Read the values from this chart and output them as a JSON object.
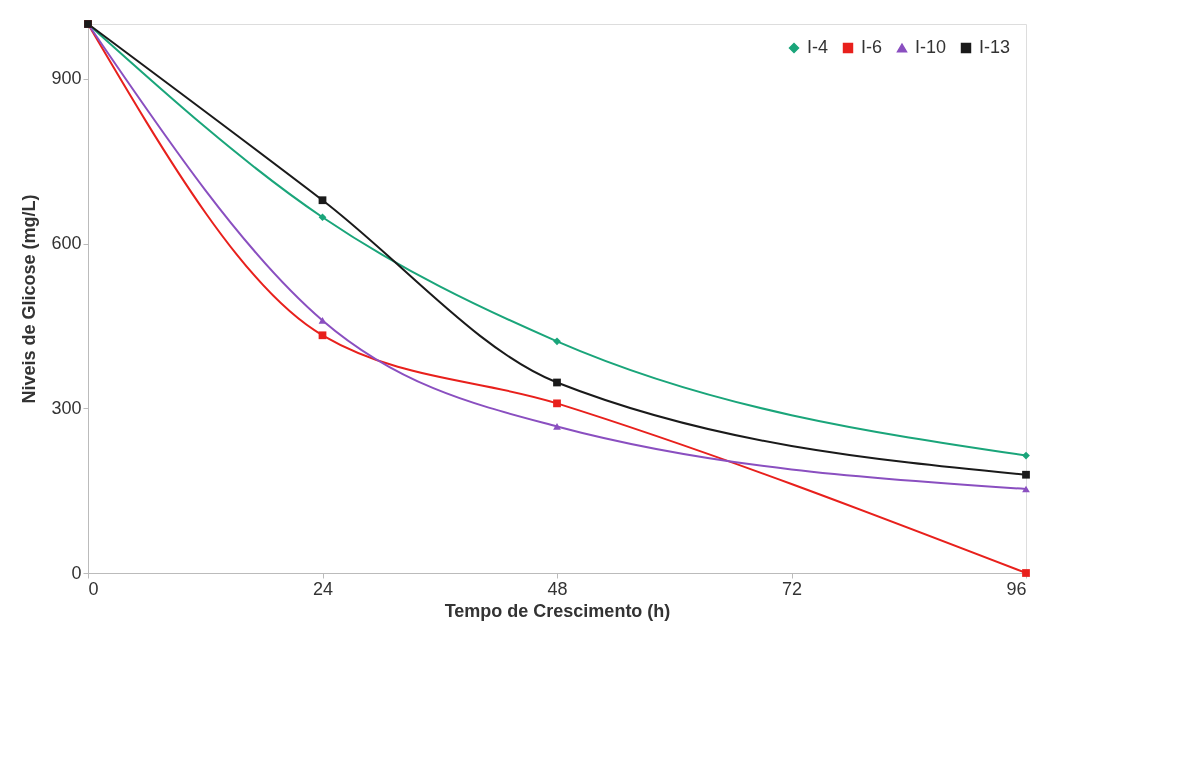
{
  "chart_data": {
    "type": "line",
    "xlabel": "Tempo de Crescimento (h)",
    "ylabel": "Niveis de Glicose  (mg/L)",
    "x": [
      0,
      24,
      48,
      96
    ],
    "xlim": [
      0,
      96
    ],
    "xticks": [
      0,
      24,
      48,
      72,
      96
    ],
    "ylim": [
      0,
      1000
    ],
    "yticks": [
      0,
      300,
      600,
      900
    ],
    "grid": false,
    "legend": "top right",
    "series": [
      {
        "name": "I-4",
        "color": "#1aa57a",
        "marker": "diamond",
        "values": [
          1000,
          648,
          422,
          214
        ]
      },
      {
        "name": "I-6",
        "color": "#e8201c",
        "marker": "square",
        "values": [
          1000,
          433,
          309,
          0
        ]
      },
      {
        "name": "I-10",
        "color": "#8a4fc0",
        "marker": "triangle",
        "values": [
          1000,
          460,
          267,
          153
        ]
      },
      {
        "name": "I-13",
        "color": "#1a1a1a",
        "marker": "square",
        "values": [
          1000,
          679,
          347,
          179
        ]
      }
    ]
  }
}
